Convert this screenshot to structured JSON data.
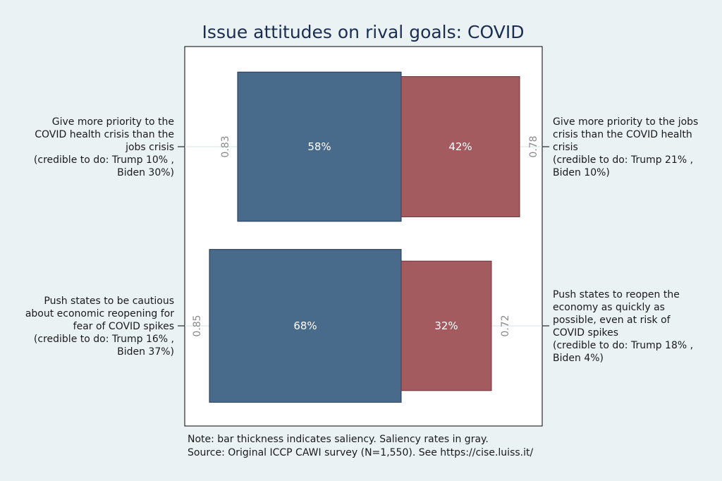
{
  "chart_data": {
    "type": "bar",
    "title": "Issue attitudes on rival goals: COVID",
    "xlim": [
      0,
      100
    ],
    "colors": {
      "left": "#486b8b",
      "right": "#a35b60",
      "plot_bg": "#ffffff",
      "page_bg": "#eaf2f3"
    },
    "rows": [
      {
        "left": {
          "value": 58,
          "value_label": "58%",
          "saliency": 0.83,
          "saliency_label": "0.83",
          "label_lines": [
            "Give more priority to the",
            "COVID health crisis than the",
            "jobs crisis",
            "(credible to do: Trump 10% ,",
            "Biden 30%)"
          ]
        },
        "right": {
          "value": 42,
          "value_label": "42%",
          "saliency": 0.78,
          "saliency_label": "0.78",
          "label_lines": [
            "Give more priority to the jobs",
            "crisis than the COVID health",
            "crisis",
            "(credible to do: Trump 21% ,",
            "Biden 10%)"
          ]
        }
      },
      {
        "left": {
          "value": 68,
          "value_label": "68%",
          "saliency": 0.85,
          "saliency_label": "0.85",
          "label_lines": [
            "Push states to be cautious",
            "about economic reopening for",
            "fear of COVID spikes",
            "(credible to do: Trump 16% ,",
            "Biden 37%)"
          ]
        },
        "right": {
          "value": 32,
          "value_label": "32%",
          "saliency": 0.72,
          "saliency_label": "0.72",
          "label_lines": [
            "Push states to reopen the",
            "economy as quickly as",
            "possible, even at risk of",
            "COVID spikes",
            "(credible to do: Trump 18% ,",
            "Biden 4%)"
          ]
        }
      }
    ],
    "notes": [
      "Note: bar thickness indicates saliency. Saliency rates in gray.",
      "Source: Original ICCP CAWI survey (N=1,550). See https://cise.luiss.it/"
    ]
  }
}
